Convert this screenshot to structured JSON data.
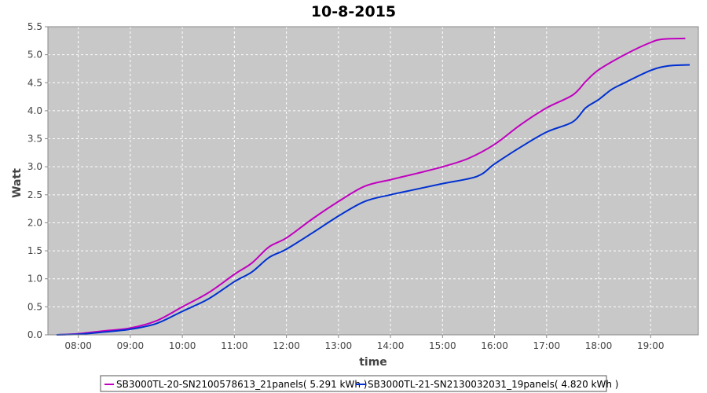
{
  "chart_data": {
    "type": "line",
    "title": "10-8-2015",
    "xlabel": "time",
    "ylabel": "Watt",
    "xlim": [
      "07:25",
      "19:55"
    ],
    "ylim": [
      0,
      5.5
    ],
    "x_ticks": [
      "08:00",
      "09:00",
      "10:00",
      "11:00",
      "12:00",
      "13:00",
      "14:00",
      "15:00",
      "16:00",
      "17:00",
      "18:00",
      "19:00"
    ],
    "y_ticks": [
      0.0,
      0.5,
      1.0,
      1.5,
      2.0,
      2.5,
      3.0,
      3.5,
      4.0,
      4.5,
      5.0,
      5.5
    ],
    "y_tick_labels": [
      "0.0",
      "0.5",
      "1.0",
      "1.5",
      "2.0",
      "2.5",
      "3.0",
      "3.5",
      "4.0",
      "4.5",
      "5.0",
      "5.5"
    ],
    "grid": true,
    "legend_position": "bottom",
    "background_color": "#c8c8c8",
    "grid_color": "#ffffff",
    "series": [
      {
        "name": "SB3000TL-20-SN2100578613_21panels( 5.291 kWh )",
        "color": "#c000c0",
        "points": [
          [
            "07:35",
            0.0
          ],
          [
            "08:00",
            0.02
          ],
          [
            "08:30",
            0.07
          ],
          [
            "09:00",
            0.12
          ],
          [
            "09:30",
            0.25
          ],
          [
            "10:00",
            0.5
          ],
          [
            "10:30",
            0.75
          ],
          [
            "11:00",
            1.08
          ],
          [
            "11:20",
            1.28
          ],
          [
            "11:40",
            1.57
          ],
          [
            "12:00",
            1.73
          ],
          [
            "12:30",
            2.07
          ],
          [
            "13:00",
            2.38
          ],
          [
            "13:30",
            2.65
          ],
          [
            "14:00",
            2.77
          ],
          [
            "14:30",
            2.88
          ],
          [
            "15:00",
            3.0
          ],
          [
            "15:30",
            3.15
          ],
          [
            "16:00",
            3.4
          ],
          [
            "16:30",
            3.75
          ],
          [
            "17:00",
            4.05
          ],
          [
            "17:30",
            4.28
          ],
          [
            "17:45",
            4.52
          ],
          [
            "18:00",
            4.73
          ],
          [
            "18:30",
            5.0
          ],
          [
            "19:00",
            5.22
          ],
          [
            "19:15",
            5.28
          ],
          [
            "19:40",
            5.291
          ]
        ]
      },
      {
        "name": "SB3000TL-21-SN2130032031_19panels( 4.820 kWh )",
        "color": "#0030d0",
        "points": [
          [
            "07:35",
            0.0
          ],
          [
            "08:00",
            0.01
          ],
          [
            "08:30",
            0.05
          ],
          [
            "09:00",
            0.1
          ],
          [
            "09:30",
            0.2
          ],
          [
            "10:00",
            0.42
          ],
          [
            "10:30",
            0.64
          ],
          [
            "11:00",
            0.95
          ],
          [
            "11:20",
            1.12
          ],
          [
            "11:40",
            1.38
          ],
          [
            "12:00",
            1.53
          ],
          [
            "12:30",
            1.82
          ],
          [
            "13:00",
            2.12
          ],
          [
            "13:30",
            2.38
          ],
          [
            "14:00",
            2.5
          ],
          [
            "14:30",
            2.6
          ],
          [
            "15:00",
            2.7
          ],
          [
            "15:40",
            2.83
          ],
          [
            "16:00",
            3.05
          ],
          [
            "16:30",
            3.35
          ],
          [
            "17:00",
            3.62
          ],
          [
            "17:30",
            3.8
          ],
          [
            "17:45",
            4.05
          ],
          [
            "18:00",
            4.2
          ],
          [
            "18:15",
            4.38
          ],
          [
            "18:30",
            4.5
          ],
          [
            "19:00",
            4.72
          ],
          [
            "19:20",
            4.8
          ],
          [
            "19:45",
            4.82
          ]
        ]
      }
    ]
  }
}
